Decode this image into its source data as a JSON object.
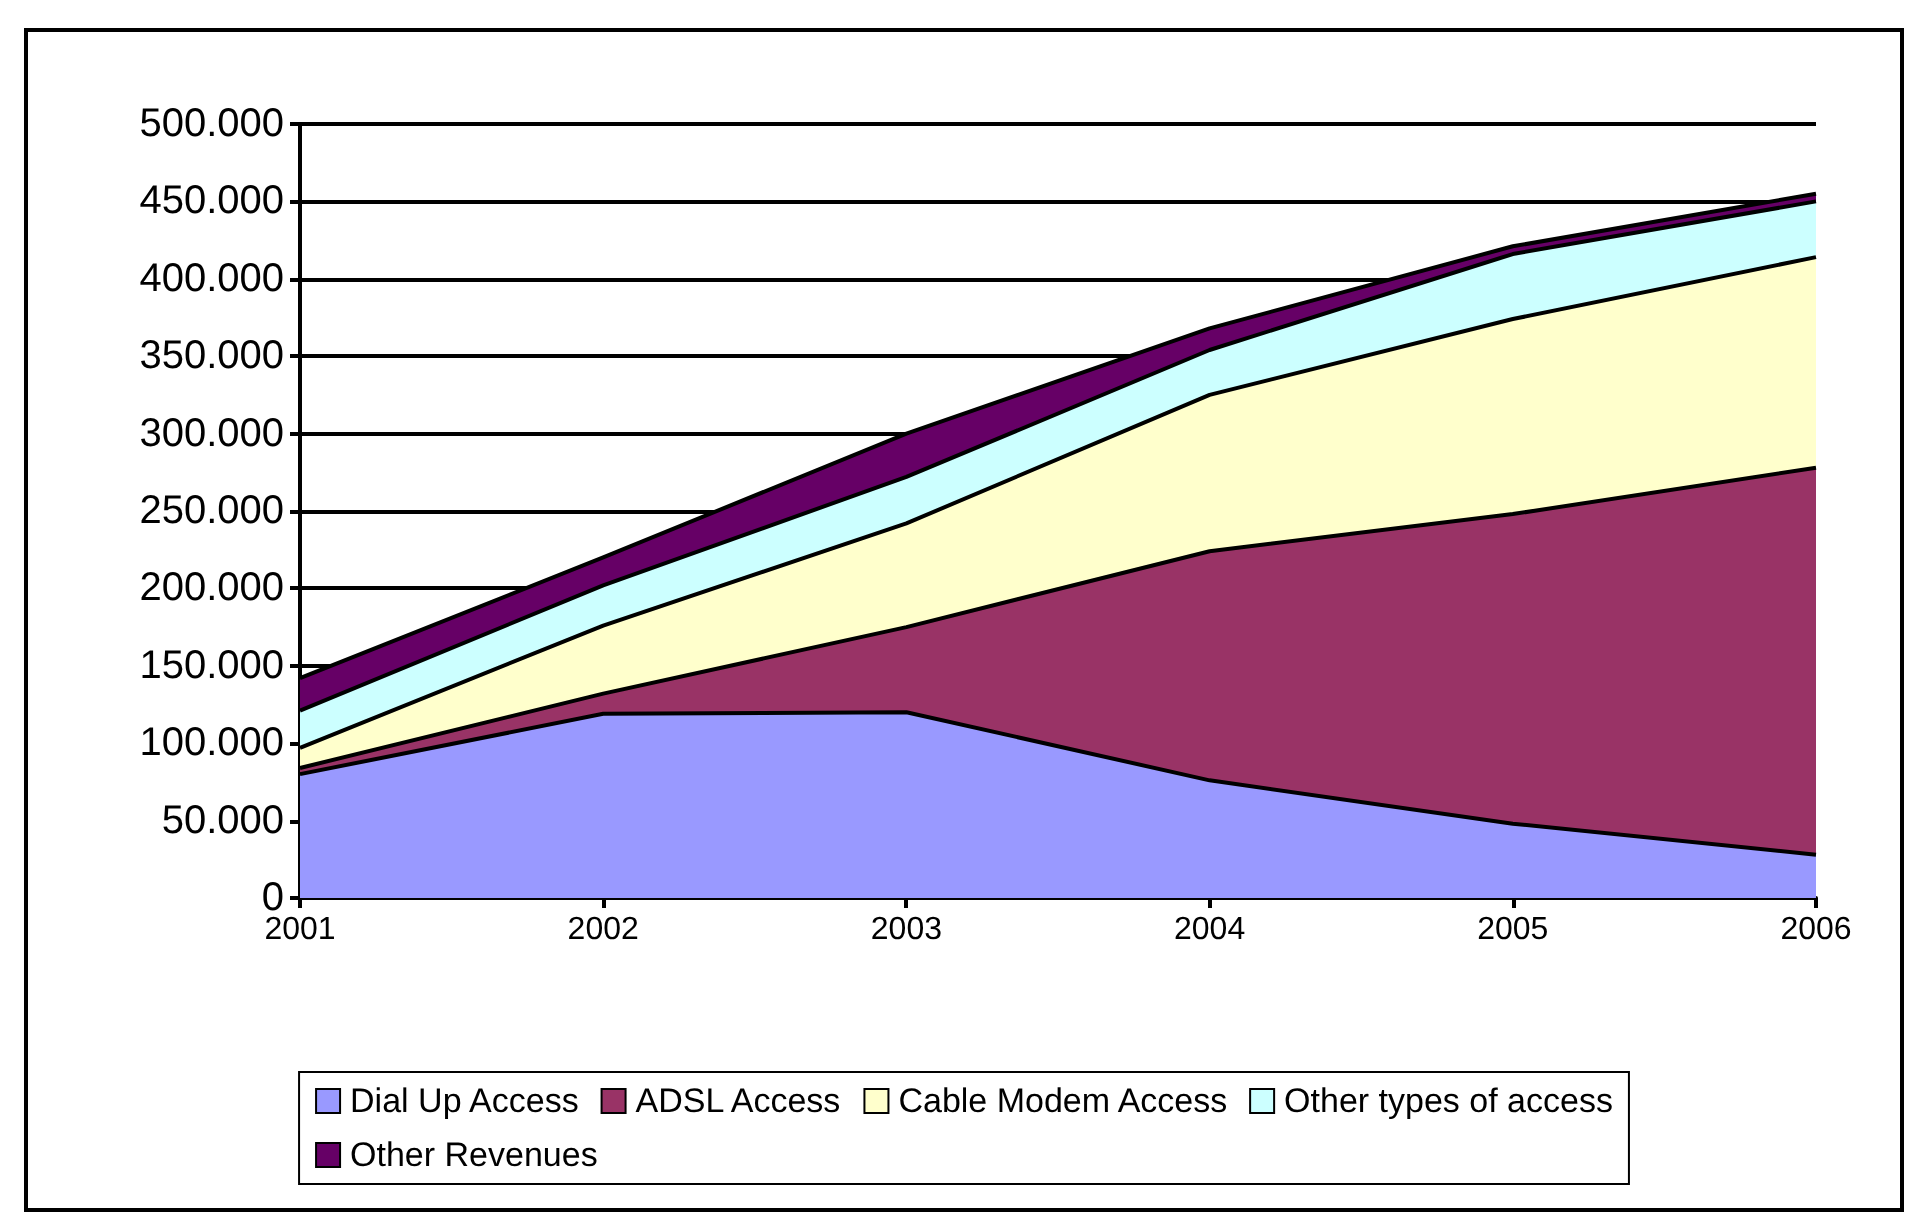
{
  "chart_data": {
    "type": "area",
    "stacked": true,
    "categories": [
      "2001",
      "2002",
      "2003",
      "2004",
      "2005",
      "2006"
    ],
    "series": [
      {
        "name": "Dial Up Access",
        "color": "#9999ff",
        "values": [
          80000,
          119000,
          120000,
          76000,
          48000,
          28000
        ]
      },
      {
        "name": "ADSL Access",
        "color": "#993366",
        "values": [
          4000,
          13000,
          55000,
          148000,
          200000,
          250000
        ]
      },
      {
        "name": "Cable Modem Access",
        "color": "#ffffcc",
        "values": [
          13000,
          44000,
          67000,
          101000,
          126000,
          136000
        ]
      },
      {
        "name": "Other types of access",
        "color": "#ccffff",
        "values": [
          24000,
          26000,
          30000,
          29000,
          42000,
          36000
        ]
      },
      {
        "name": "Other Revenues",
        "color": "#660066",
        "values": [
          21000,
          18000,
          28000,
          14000,
          5000,
          5000
        ]
      }
    ],
    "ylim": [
      0,
      500000
    ],
    "yticks": [
      {
        "value": 0,
        "label": "0"
      },
      {
        "value": 50000,
        "label": "50.000"
      },
      {
        "value": 100000,
        "label": "100.000"
      },
      {
        "value": 150000,
        "label": "150.000"
      },
      {
        "value": 200000,
        "label": "200.000"
      },
      {
        "value": 250000,
        "label": "250.000"
      },
      {
        "value": 300000,
        "label": "300.000"
      },
      {
        "value": 350000,
        "label": "350.000"
      },
      {
        "value": 400000,
        "label": "400.000"
      },
      {
        "value": 450000,
        "label": "450.000"
      },
      {
        "value": 500000,
        "label": "500.000"
      }
    ],
    "grid": "y",
    "legend": "bottom",
    "line_style": "solid",
    "marker": "none"
  }
}
